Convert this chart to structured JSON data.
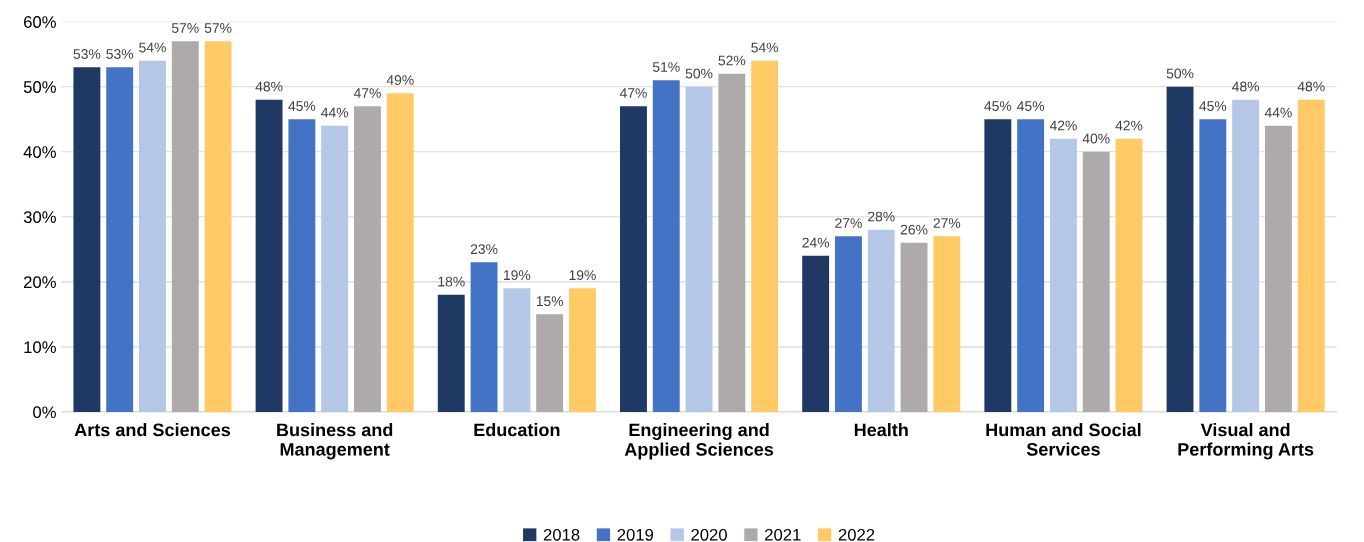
{
  "chart_data": {
    "type": "bar",
    "categories": [
      "Arts and Sciences",
      "Business and\nManagement",
      "Education",
      "Engineering and\nApplied Sciences",
      "Health",
      "Human and Social\nServices",
      "Visual and\nPerforming Arts"
    ],
    "series": [
      {
        "name": "2018",
        "color": "#203864",
        "values": [
          53,
          48,
          18,
          47,
          24,
          45,
          50
        ],
        "value_labels": [
          "53%",
          "48%",
          "18%",
          "47%",
          "24%",
          "45%",
          "50%"
        ]
      },
      {
        "name": "2019",
        "color": "#4472c4",
        "values": [
          53,
          45,
          23,
          51,
          27,
          45,
          45
        ],
        "value_labels": [
          "53%",
          "45%",
          "23%",
          "51%",
          "27%",
          "45%",
          "45%"
        ]
      },
      {
        "name": "2020",
        "color": "#b4c7e7",
        "values": [
          54,
          44,
          19,
          50,
          28,
          42,
          48
        ],
        "value_labels": [
          "54%",
          "44%",
          "19%",
          "50%",
          "28%",
          "42%",
          "48%"
        ]
      },
      {
        "name": "2021",
        "color": "#aeaaaa",
        "values": [
          57,
          47,
          15,
          52,
          26,
          40,
          44
        ],
        "value_labels": [
          "57%",
          "47%",
          "15%",
          "52%",
          "26%",
          "40%",
          "44%"
        ]
      },
      {
        "name": "2022",
        "color": "#ffc965",
        "values": [
          57,
          49,
          19,
          54,
          27,
          42,
          48
        ],
        "value_labels": [
          "57%",
          "49%",
          "19%",
          "54%",
          "27%",
          "42%",
          "48%"
        ]
      }
    ],
    "ylim": [
      0,
      60
    ],
    "yticks": [
      {
        "value": 0,
        "label": "0%"
      },
      {
        "value": 10,
        "label": "10%"
      },
      {
        "value": 20,
        "label": "20%"
      },
      {
        "value": 30,
        "label": "30%"
      },
      {
        "value": 40,
        "label": "40%"
      },
      {
        "value": 50,
        "label": "50%"
      },
      {
        "value": 60,
        "label": "60%"
      }
    ],
    "grid": "y",
    "legend": "bottom"
  }
}
